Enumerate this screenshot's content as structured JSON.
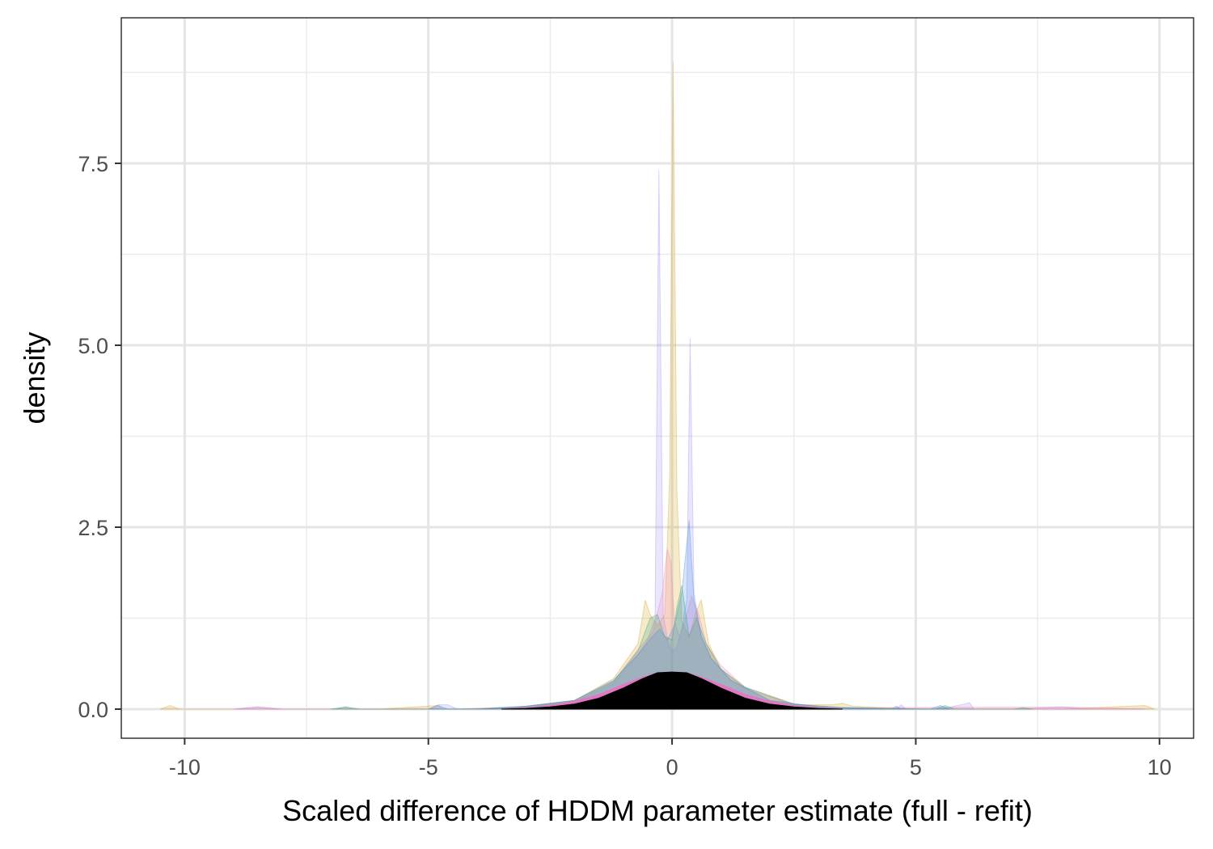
{
  "chart_data": {
    "type": "area",
    "title": "",
    "xlabel": "Scaled difference of HDDM parameter estimate (full - refit)",
    "ylabel": "density",
    "xlim": [
      -11.3,
      10.7
    ],
    "ylim": [
      -0.4,
      9.5
    ],
    "x_ticks": [
      -10,
      -5,
      0,
      5,
      10
    ],
    "x_tick_labels": [
      "-10",
      "-5",
      "0",
      "5",
      "10"
    ],
    "y_ticks": [
      0,
      2.5,
      5,
      7.5
    ],
    "y_tick_labels": [
      "0.0",
      "2.5",
      "5.0",
      "7.5"
    ],
    "grid": true,
    "legend": "none",
    "series": [
      {
        "color": "#d4a017",
        "opacity": 0.22,
        "x": [
          -10.5,
          -10.3,
          -10.1,
          -6,
          -4.8,
          -4.7,
          -4.6,
          -3,
          -2,
          -1.2,
          -0.7,
          -0.55,
          -0.45,
          -0.3,
          -0.15,
          -0.05,
          0.02,
          0.1,
          0.2,
          0.35,
          0.5,
          0.6,
          0.75,
          1,
          1.5,
          2.5,
          3.3,
          3.5,
          3.7,
          5,
          7,
          8,
          9.7,
          9.9
        ],
        "y": [
          0,
          0.05,
          0,
          0,
          0.05,
          0,
          0,
          0.03,
          0.12,
          0.42,
          0.9,
          1.5,
          1.3,
          1.15,
          1.3,
          3.2,
          8.9,
          3.0,
          1.2,
          1.0,
          1.35,
          1.5,
          0.9,
          0.55,
          0.28,
          0.06,
          0.06,
          0.08,
          0.04,
          0,
          0,
          0,
          0.05,
          0
        ]
      },
      {
        "color": "#9e8cf5",
        "opacity": 0.22,
        "x": [
          -9,
          -8.5,
          -8,
          -6.9,
          -6.7,
          -6.5,
          -5,
          -4.8,
          -4.6,
          -4.4,
          -3,
          -2,
          -1.2,
          -0.7,
          -0.5,
          -0.35,
          -0.27,
          -0.18,
          -0.08,
          0,
          0.1,
          0.2,
          0.3,
          0.37,
          0.45,
          0.6,
          0.8,
          1.2,
          2,
          3,
          4.6,
          4.7,
          4.8,
          5.5,
          6,
          6.1,
          6.2,
          7,
          8,
          8.5,
          9.7
        ],
        "y": [
          0,
          0.03,
          0,
          0,
          0.03,
          0,
          0,
          0.06,
          0.06,
          0,
          0.03,
          0.1,
          0.35,
          0.75,
          0.95,
          1.25,
          7.4,
          1.3,
          0.9,
          0.8,
          0.85,
          1.1,
          1.5,
          5.1,
          1.6,
          1.0,
          0.7,
          0.4,
          0.12,
          0.03,
          0,
          0.06,
          0,
          0,
          0.07,
          0.09,
          0,
          0,
          0.03,
          0,
          0
        ]
      },
      {
        "color": "#f27fb5",
        "opacity": 0.22,
        "x": [
          -9,
          -8.5,
          -8,
          -4,
          -3,
          -2,
          -1.2,
          -0.7,
          -0.4,
          -0.2,
          -0.1,
          -0.02,
          0.05,
          0.15,
          0.3,
          0.4,
          0.55,
          0.7,
          1,
          1.5,
          2.5,
          3.5,
          8,
          9.7
        ],
        "y": [
          0,
          0.03,
          0,
          0,
          0.04,
          0.12,
          0.38,
          0.82,
          1.05,
          1.6,
          2.2,
          2.0,
          1.2,
          1.0,
          1.3,
          1.55,
          1.3,
          0.9,
          0.6,
          0.3,
          0.07,
          0.02,
          0.03,
          0
        ]
      },
      {
        "color": "#2ca25f",
        "opacity": 0.22,
        "x": [
          -7,
          -6.7,
          -6.4,
          -4,
          -3,
          -2,
          -1.2,
          -0.7,
          -0.45,
          -0.3,
          -0.15,
          0,
          0.1,
          0.2,
          0.35,
          0.5,
          0.7,
          1,
          1.5,
          2.5,
          3.5,
          5.4,
          5.6,
          5.8,
          7,
          7.2,
          7.4
        ],
        "y": [
          0,
          0.03,
          0,
          0,
          0.04,
          0.12,
          0.38,
          0.8,
          1.25,
          1.3,
          1.0,
          0.95,
          1.4,
          1.7,
          1.0,
          1.25,
          0.9,
          0.55,
          0.3,
          0.07,
          0.02,
          0,
          0.05,
          0,
          0,
          0.02,
          0
        ]
      },
      {
        "color": "#3c8fe0",
        "opacity": 0.22,
        "x": [
          -5,
          -4.8,
          -4.6,
          -4,
          -3,
          -2,
          -1.2,
          -0.7,
          -0.4,
          -0.25,
          -0.1,
          0.05,
          0.2,
          0.35,
          0.45,
          0.6,
          0.8,
          1.2,
          2,
          3,
          4.5,
          4.6,
          4.7,
          5.3,
          5.5,
          5.7
        ],
        "y": [
          0,
          0.05,
          0,
          0,
          0.04,
          0.12,
          0.4,
          0.75,
          1.0,
          1.1,
          0.95,
          1.15,
          1.6,
          2.6,
          1.5,
          1.0,
          0.7,
          0.4,
          0.12,
          0.03,
          0,
          0.04,
          0,
          0,
          0.05,
          0
        ]
      },
      {
        "color": "#e377c2",
        "opacity": 1.0,
        "x": [
          -3.5,
          -3,
          -2.5,
          -2,
          -1.5,
          -1,
          -0.6,
          -0.3,
          0,
          0.3,
          0.6,
          1,
          1.5,
          2,
          2.5,
          3,
          3.5
        ],
        "y": [
          0,
          0.02,
          0.05,
          0.11,
          0.2,
          0.34,
          0.44,
          0.5,
          0.51,
          0.5,
          0.44,
          0.34,
          0.2,
          0.11,
          0.05,
          0.02,
          0
        ]
      },
      {
        "color": "#000000",
        "opacity": 1.0,
        "x": [
          -3.5,
          -3,
          -2.5,
          -2,
          -1.5,
          -1,
          -0.6,
          -0.3,
          0,
          0.3,
          0.6,
          1,
          1.5,
          2,
          2.5,
          3,
          3.5
        ],
        "y": [
          0,
          0.01,
          0.03,
          0.07,
          0.15,
          0.29,
          0.42,
          0.5,
          0.51,
          0.5,
          0.42,
          0.29,
          0.15,
          0.07,
          0.03,
          0.01,
          0
        ]
      }
    ]
  }
}
